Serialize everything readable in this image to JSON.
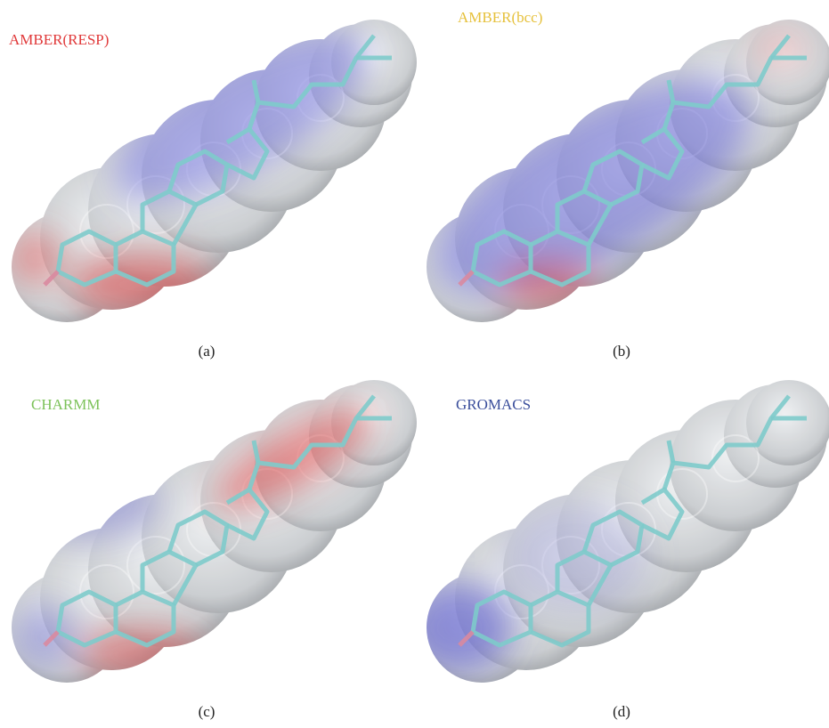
{
  "panels": [
    {
      "label": "AMBER(RESP)",
      "label_color": "#e0393a",
      "caption": "(a)"
    },
    {
      "label": "AMBER(bcc)",
      "label_color": "#e6c13c",
      "caption": "(b)"
    },
    {
      "label": "CHARMM",
      "label_color": "#7cc259",
      "caption": "(c)"
    },
    {
      "label": "GROMACS",
      "label_color": "#3b4f9c",
      "caption": "(d)"
    }
  ]
}
